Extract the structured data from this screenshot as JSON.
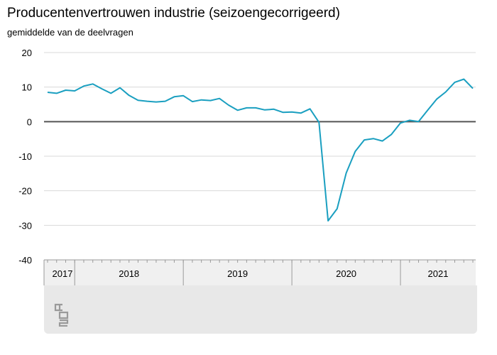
{
  "chart_data": {
    "type": "line",
    "title": "Producentenvertrouwen industrie (seizoengecorrigeerd)",
    "subtitle": "gemiddelde van de deelvragen",
    "xlabel": "",
    "ylabel": "gemiddelde van de deelvragen",
    "ylim": [
      -40,
      20
    ],
    "yticks": [
      20,
      10,
      0,
      -10,
      -20,
      -30,
      -40
    ],
    "year_labels": [
      "2017",
      "2018",
      "2019",
      "2020",
      "2021"
    ],
    "x_start": "2017-10",
    "x_end": "2021-09",
    "grid": true,
    "legend": "none",
    "line_color": "#1a9fc0",
    "zero_line_color": "#555555",
    "series": [
      {
        "name": "",
        "x": [
          "2017-10",
          "2017-11",
          "2017-12",
          "2018-01",
          "2018-02",
          "2018-03",
          "2018-04",
          "2018-05",
          "2018-06",
          "2018-07",
          "2018-08",
          "2018-09",
          "2018-10",
          "2018-11",
          "2018-12",
          "2019-01",
          "2019-02",
          "2019-03",
          "2019-04",
          "2019-05",
          "2019-06",
          "2019-07",
          "2019-08",
          "2019-09",
          "2019-10",
          "2019-11",
          "2019-12",
          "2020-01",
          "2020-02",
          "2020-03",
          "2020-04",
          "2020-05",
          "2020-06",
          "2020-07",
          "2020-08",
          "2020-09",
          "2020-10",
          "2020-11",
          "2020-12",
          "2021-01",
          "2021-02",
          "2021-03",
          "2021-04",
          "2021-05",
          "2021-06",
          "2021-07",
          "2021-08",
          "2021-09"
        ],
        "values": [
          8.5,
          8.2,
          9.1,
          8.9,
          10.3,
          10.9,
          9.5,
          8.2,
          9.8,
          7.6,
          6.2,
          5.9,
          5.7,
          5.9,
          7.2,
          7.5,
          5.8,
          6.3,
          6.1,
          6.7,
          4.8,
          3.3,
          4.0,
          4.0,
          3.4,
          3.6,
          2.7,
          2.8,
          2.5,
          3.7,
          -0.2,
          -28.7,
          -25.2,
          -14.9,
          -8.6,
          -5.3,
          -4.9,
          -5.6,
          -3.7,
          -0.4,
          0.4,
          0.0,
          3.3,
          6.5,
          8.6,
          11.4,
          12.3,
          9.6
        ]
      }
    ]
  }
}
